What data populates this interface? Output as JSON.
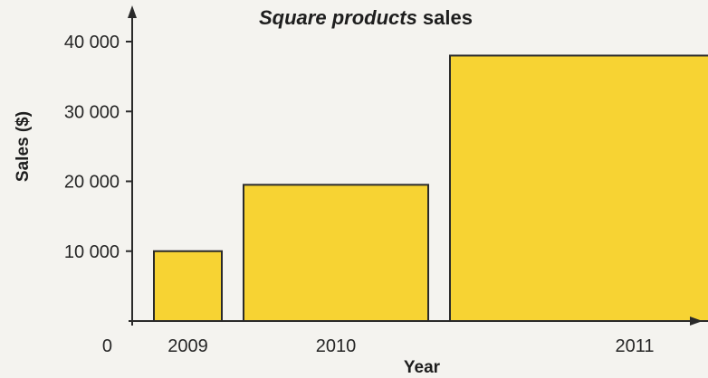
{
  "chart_data": {
    "type": "bar",
    "title_italic": "Square products",
    "title_rest": " sales",
    "xlabel": "Year",
    "ylabel": "Sales ($)",
    "categories": [
      "2009",
      "2010",
      "2011"
    ],
    "values": [
      10000,
      19500,
      38000
    ],
    "bar_widths": [
      1,
      2,
      4
    ],
    "yticks": [
      0,
      10000,
      20000,
      30000,
      40000
    ],
    "ytick_labels": [
      "0",
      "10 000",
      "20 000",
      "30 000",
      "40 000"
    ],
    "ylim": [
      0,
      44000
    ],
    "grid": false,
    "bar_color": "#f7d333",
    "bar_edge_color": "#2a2a2a"
  }
}
